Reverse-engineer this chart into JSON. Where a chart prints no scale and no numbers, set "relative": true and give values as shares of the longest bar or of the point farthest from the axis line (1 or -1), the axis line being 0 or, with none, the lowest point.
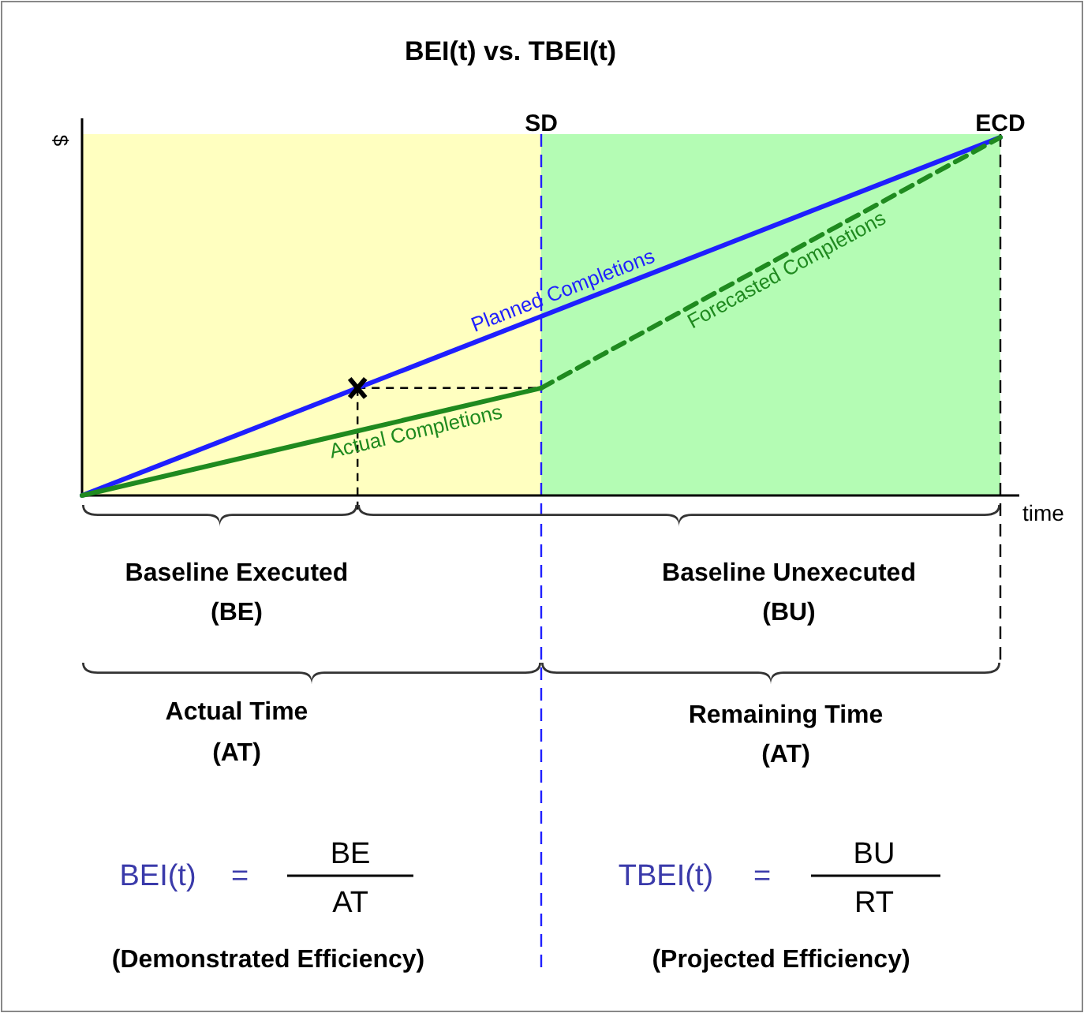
{
  "chart_data": {
    "type": "line",
    "title": "BEI(t) vs. TBEI(t)",
    "xlabel": "time",
    "ylabel": "$",
    "relative": true,
    "categories": [
      null,
      null,
      null,
      null,
      null,
      null,
      null,
      null,
      null,
      null,
      null
    ],
    "series": [
      {
        "name": "Planned Completions",
        "color": "#1f1fff",
        "values": [
          0,
          0.1,
          0.2,
          0.3,
          0.4,
          0.5,
          0.6,
          0.7,
          0.8,
          0.9,
          1
        ]
      },
      {
        "name": "Actual Completions",
        "color": "#1f8a1f",
        "values": [
          0,
          0.06,
          0.12,
          0.18,
          0.24,
          0.3,
          null,
          null,
          null,
          null,
          null
        ]
      },
      {
        "name": "Forecasted Completions",
        "color": "#1f8a1f",
        "line_style": "dashed",
        "values": [
          null,
          null,
          null,
          null,
          null,
          0.3,
          0.44,
          0.58,
          0.72,
          0.86,
          1
        ]
      }
    ],
    "annotations": [
      "SD",
      "ECD",
      "Baseline Executed",
      "(BE)",
      "Baseline Unexecuted",
      "(BU)",
      "Actual Time",
      "(AT)",
      "Remaining Time",
      "(AT)",
      "BEI(t)",
      "=",
      "BE",
      "AT",
      "(Demonstrated Efficiency)",
      "TBEI(t)",
      "=",
      "BU",
      "RT",
      "(Projected Efficiency)"
    ]
  }
}
